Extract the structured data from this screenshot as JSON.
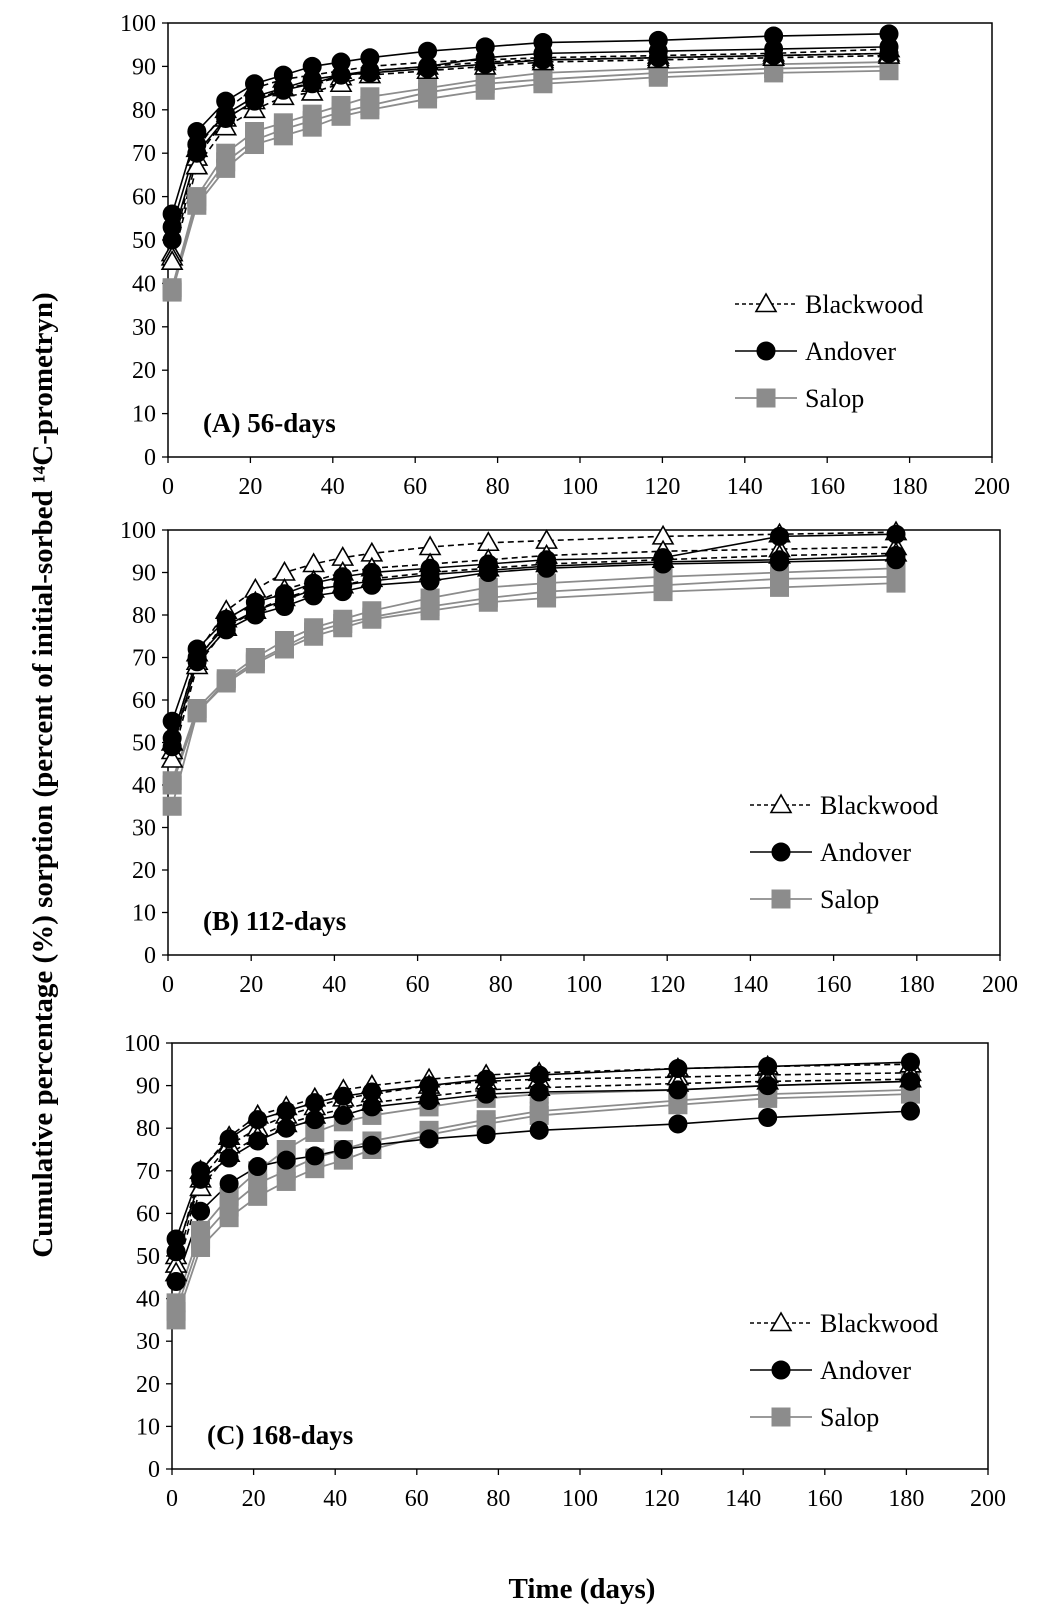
{
  "figure": {
    "ylabel": "Cumulative percentage (%) sorption (percent of initial-sorbed ¹⁴C-prometryn)",
    "xlabel": "Time (days)"
  },
  "legend": [
    {
      "name": "Blackwood",
      "color": "#000000",
      "marker": "triangle-open",
      "line": "dashed"
    },
    {
      "name": "Andover",
      "color": "#000000",
      "marker": "circle-filled",
      "line": "solid"
    },
    {
      "name": "Salop",
      "color": "#8c8c8c",
      "marker": "square-filled",
      "line": "solid"
    }
  ],
  "chart_data": [
    {
      "type": "line",
      "title": "(A) 56-days",
      "xlim": [
        0,
        200
      ],
      "ylim": [
        0,
        100
      ],
      "xticks": [
        0,
        20,
        40,
        60,
        80,
        100,
        120,
        140,
        160,
        180,
        200
      ],
      "yticks": [
        0,
        10,
        20,
        30,
        40,
        50,
        60,
        70,
        80,
        90,
        100
      ],
      "grid": false,
      "legend_position": "bottom-right",
      "x": [
        1,
        7,
        14,
        21,
        28,
        35,
        42,
        49,
        63,
        77,
        91,
        119,
        147,
        175
      ],
      "series": [
        {
          "soil": "Blackwood",
          "values": [
            47,
            71,
            80,
            85,
            87,
            88,
            89,
            90,
            91,
            91.5,
            92,
            92.5,
            93,
            94
          ]
        },
        {
          "soil": "Blackwood",
          "values": [
            46,
            69,
            78,
            82,
            85,
            86,
            87.5,
            89,
            90,
            91,
            91.5,
            92,
            92.5,
            93
          ]
        },
        {
          "soil": "Blackwood",
          "values": [
            45,
            67,
            76,
            80,
            83,
            84,
            86,
            88,
            89,
            90,
            91,
            91.5,
            92,
            92.5
          ]
        },
        {
          "soil": "Andover",
          "values": [
            56,
            75,
            82,
            86,
            88,
            90,
            91,
            92,
            93.5,
            94.5,
            95.5,
            96,
            97,
            97.5
          ]
        },
        {
          "soil": "Andover",
          "values": [
            53,
            72,
            79,
            83,
            85,
            87,
            88,
            89,
            90,
            92,
            93,
            93.5,
            94,
            94.5
          ]
        },
        {
          "soil": "Andover",
          "values": [
            50,
            70,
            78,
            82,
            84.5,
            86,
            88,
            88.5,
            89.5,
            90.5,
            91.5,
            92,
            92.5,
            93
          ]
        },
        {
          "soil": "Salop",
          "values": [
            39,
            60,
            70,
            75,
            77,
            79,
            81,
            83,
            85,
            87,
            88.5,
            89.5,
            90.5,
            91
          ]
        },
        {
          "soil": "Salop",
          "values": [
            38.5,
            59,
            68,
            73,
            75.5,
            77.5,
            79.5,
            81,
            84,
            86,
            87,
            88.5,
            89.5,
            90
          ]
        },
        {
          "soil": "Salop",
          "values": [
            38,
            58,
            66.5,
            72,
            74,
            76,
            78.5,
            80,
            82.5,
            84.5,
            86,
            87.5,
            88.5,
            89
          ]
        }
      ]
    },
    {
      "type": "line",
      "title": "(B) 112-days",
      "xlim": [
        0,
        200
      ],
      "ylim": [
        0,
        100
      ],
      "xticks": [
        0,
        20,
        40,
        60,
        80,
        100,
        120,
        140,
        160,
        180,
        200
      ],
      "yticks": [
        0,
        10,
        20,
        30,
        40,
        50,
        60,
        70,
        80,
        90,
        100
      ],
      "grid": false,
      "legend_position": "bottom-right",
      "x": [
        1,
        7,
        14,
        21,
        28,
        35,
        42,
        49,
        63,
        77,
        91,
        119,
        147,
        175
      ],
      "series": [
        {
          "soil": "Blackwood",
          "values": [
            50,
            71,
            81,
            86,
            90,
            92,
            93.5,
            94.5,
            96,
            97,
            97.5,
            98.5,
            99,
            99.5
          ]
        },
        {
          "soil": "Blackwood",
          "values": [
            48,
            69,
            79,
            83,
            86,
            88,
            90,
            91,
            92,
            93,
            94,
            95,
            95.5,
            96
          ]
        },
        {
          "soil": "Blackwood",
          "values": [
            46,
            68,
            77,
            81,
            84,
            86,
            87,
            88.5,
            90,
            91,
            92,
            93,
            94,
            94.5
          ]
        },
        {
          "soil": "Andover",
          "values": [
            55,
            72,
            79,
            83,
            85,
            87.5,
            89,
            90,
            91,
            92,
            93,
            93.5,
            98.5,
            99
          ]
        },
        {
          "soil": "Andover",
          "values": [
            51,
            70,
            77.5,
            81,
            83.5,
            86,
            87,
            88,
            89.5,
            90.5,
            91.5,
            92.5,
            93,
            94
          ]
        },
        {
          "soil": "Andover",
          "values": [
            49,
            69,
            76.5,
            80,
            82,
            84.5,
            85.5,
            87,
            88,
            90,
            91,
            92,
            92.5,
            93
          ]
        },
        {
          "soil": "Salop",
          "values": [
            41,
            58,
            65,
            70,
            74,
            77,
            79,
            81,
            84,
            86.5,
            87.5,
            89,
            90,
            91
          ]
        },
        {
          "soil": "Salop",
          "values": [
            40,
            57,
            64.5,
            69,
            72.5,
            76,
            78,
            79.5,
            82,
            84,
            85.5,
            87,
            88.5,
            89
          ]
        },
        {
          "soil": "Salop",
          "values": [
            35,
            57,
            64,
            68.5,
            72,
            75,
            77,
            79,
            81,
            83,
            84,
            85.5,
            86.5,
            87.5
          ]
        }
      ]
    },
    {
      "type": "line",
      "title": "(C) 168-days",
      "xlim": [
        0,
        200
      ],
      "ylim": [
        0,
        100
      ],
      "xticks": [
        0,
        20,
        40,
        60,
        80,
        100,
        120,
        140,
        160,
        180,
        200
      ],
      "yticks": [
        0,
        10,
        20,
        30,
        40,
        50,
        60,
        70,
        80,
        90,
        100
      ],
      "grid": false,
      "legend_position": "bottom-right",
      "x": [
        1,
        7,
        14,
        21,
        28,
        35,
        42,
        49,
        63,
        77,
        90,
        124,
        146,
        181
      ],
      "series": [
        {
          "soil": "Blackwood",
          "values": [
            50,
            70,
            78,
            83,
            85,
            87,
            89,
            90,
            91.5,
            92.5,
            93,
            94,
            94.5,
            95
          ]
        },
        {
          "soil": "Blackwood",
          "values": [
            48,
            68,
            76,
            80,
            83,
            85,
            87,
            88,
            90,
            91,
            91.5,
            92,
            92.5,
            93
          ]
        },
        {
          "soil": "Blackwood",
          "values": [
            46,
            66,
            74,
            78,
            81,
            83,
            84.5,
            86,
            87.5,
            89,
            89.5,
            90.5,
            91,
            91.5
          ]
        },
        {
          "soil": "Andover",
          "values": [
            54,
            70,
            77.5,
            82,
            84,
            86,
            87.5,
            88.5,
            90,
            91.5,
            92.5,
            94,
            94.5,
            95.5
          ]
        },
        {
          "soil": "Andover",
          "values": [
            51,
            68,
            73,
            77,
            80,
            82,
            83,
            85,
            86.5,
            88,
            88.5,
            89,
            90,
            91
          ]
        },
        {
          "soil": "Andover",
          "values": [
            44,
            60.5,
            67,
            71,
            72.5,
            73.5,
            75,
            76,
            77.5,
            78.5,
            79.5,
            81,
            82.5,
            84
          ]
        },
        {
          "soil": "Salop",
          "values": [
            39,
            56,
            64,
            70,
            75,
            79,
            81.5,
            83,
            85,
            87,
            88,
            89,
            90,
            91
          ]
        },
        {
          "soil": "Salop",
          "values": [
            37,
            54,
            61.5,
            67,
            70,
            73,
            75,
            77,
            79.5,
            82,
            84,
            86.5,
            88,
            89
          ]
        },
        {
          "soil": "Salop",
          "values": [
            35,
            52,
            59,
            64,
            67.5,
            70.5,
            72.5,
            75,
            78.5,
            81,
            83,
            85.5,
            87,
            88
          ]
        }
      ]
    }
  ]
}
